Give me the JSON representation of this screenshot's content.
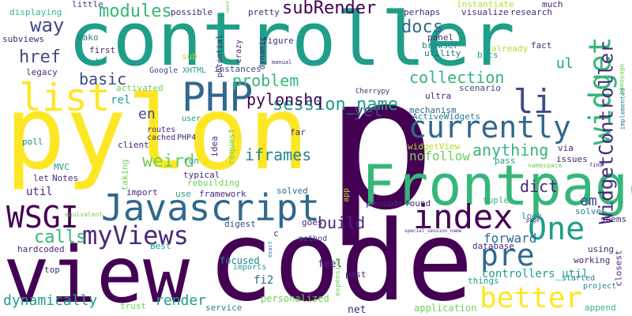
{
  "palette": {
    "purple": "#440154",
    "indigo": "#482878",
    "blue": "#3e4989",
    "steel": "#31688e",
    "teal": "#26828e",
    "sea": "#1f9e89",
    "green": "#35b779",
    "lime": "#6ece58",
    "light": "#b5de2b",
    "yellow": "#fde725"
  },
  "words": [
    {
      "text": "p",
      "color": "purple"
    },
    {
      "text": "controller",
      "color": "sea"
    },
    {
      "text": "pylon",
      "color": "yellow"
    },
    {
      "text": "code",
      "color": "purple"
    },
    {
      "text": "view",
      "color": "purple"
    },
    {
      "text": "Frontpage",
      "color": "green"
    },
    {
      "text": "Javascript",
      "color": "steel"
    },
    {
      "text": "index",
      "color": "purple"
    },
    {
      "text": "currently",
      "color": "steel"
    },
    {
      "text": "PHP",
      "color": "steel"
    },
    {
      "text": "list",
      "color": "yellow"
    },
    {
      "text": "widget",
      "color": "green"
    },
    {
      "text": "li",
      "color": "blue"
    },
    {
      "text": "WidgetController",
      "color": "indigo"
    },
    {
      "text": "myViews",
      "color": "indigo"
    },
    {
      "text": "One",
      "color": "sea"
    },
    {
      "text": "better",
      "color": "yellow"
    },
    {
      "text": "WSGI",
      "color": "purple"
    },
    {
      "text": "pre",
      "color": "steel"
    },
    {
      "text": "modules",
      "color": "green"
    },
    {
      "text": "subRender",
      "color": "purple"
    },
    {
      "text": "docs",
      "color": "steel"
    },
    {
      "text": "way",
      "color": "blue"
    },
    {
      "text": "href",
      "color": "blue"
    },
    {
      "text": "basic",
      "color": "blue"
    },
    {
      "text": "collection",
      "color": "green"
    },
    {
      "text": "session_name",
      "color": "sea"
    },
    {
      "text": "pylonshq",
      "color": "purple"
    },
    {
      "text": "problem",
      "color": "green"
    },
    {
      "text": "yet",
      "color": "blue"
    },
    {
      "text": "anything",
      "color": "green"
    },
    {
      "text": "iframes",
      "color": "teal"
    },
    {
      "text": "weird",
      "color": "lime"
    },
    {
      "text": "build",
      "color": "indigo"
    },
    {
      "text": "dict",
      "color": "indigo"
    },
    {
      "text": "calls",
      "color": "green"
    },
    {
      "text": "em",
      "color": "blue"
    },
    {
      "text": "en",
      "color": "blue"
    },
    {
      "text": "nofollow",
      "color": "lime"
    },
    {
      "text": "forward",
      "color": "steel"
    },
    {
      "text": "render",
      "color": "sea"
    },
    {
      "text": "dynamically",
      "color": "sea"
    },
    {
      "text": "controllers_util",
      "color": "sea"
    },
    {
      "text": "ul",
      "color": "sea"
    },
    {
      "text": "fi2",
      "color": "steel"
    },
    {
      "text": "rel",
      "color": "sea"
    },
    {
      "text": "util",
      "color": "indigo"
    },
    {
      "text": "Google",
      "color": "blue"
    },
    {
      "text": "XHTML",
      "color": "sea"
    },
    {
      "text": "instances",
      "color": "blue"
    },
    {
      "text": "routes",
      "color": "indigo"
    },
    {
      "text": "cached",
      "color": "indigo"
    },
    {
      "text": "client",
      "color": "indigo"
    },
    {
      "text": "PHP4",
      "color": "indigo"
    },
    {
      "text": "typical",
      "color": "indigo"
    },
    {
      "text": "framework",
      "color": "indigo"
    },
    {
      "text": "solved",
      "color": "steel"
    },
    {
      "text": "digest",
      "color": "blue"
    },
    {
      "text": "goes",
      "color": "indigo"
    },
    {
      "text": "method",
      "color": "blue"
    },
    {
      "text": "focused",
      "color": "teal"
    },
    {
      "text": "imports",
      "color": "sea"
    },
    {
      "text": "feel",
      "color": "indigo"
    },
    {
      "text": "past",
      "color": "indigo"
    },
    {
      "text": "net",
      "color": "indigo"
    },
    {
      "text": "service",
      "color": "teal"
    },
    {
      "text": "personalized",
      "color": "lime"
    },
    {
      "text": "application",
      "color": "lime"
    },
    {
      "text": "trust",
      "color": "lime"
    },
    {
      "text": "things",
      "color": "sea"
    },
    {
      "text": "started",
      "color": "teal"
    },
    {
      "text": "project",
      "color": "teal"
    },
    {
      "text": "append",
      "color": "green"
    },
    {
      "text": "working",
      "color": "indigo"
    },
    {
      "text": "using",
      "color": "indigo"
    },
    {
      "text": "closest",
      "color": "indigo"
    },
    {
      "text": "database",
      "color": "indigo"
    },
    {
      "text": "found",
      "color": "indigo"
    },
    {
      "text": "tuples",
      "color": "green"
    },
    {
      "text": "solve",
      "color": "teal"
    },
    {
      "text": "look",
      "color": "teal"
    },
    {
      "text": "seems",
      "color": "indigo"
    },
    {
      "text": "peusudo",
      "color": "indigo"
    },
    {
      "text": "app",
      "color": "light"
    },
    {
      "text": "pass",
      "color": "sea"
    },
    {
      "text": "issues",
      "color": "indigo"
    },
    {
      "text": "via",
      "color": "indigo"
    },
    {
      "text": "mechanism",
      "color": "steel"
    },
    {
      "text": "ultra",
      "color": "indigo"
    },
    {
      "text": "scenario",
      "color": "blue"
    },
    {
      "text": "ActiveWidgets",
      "color": "teal"
    },
    {
      "text": "widgetView",
      "color": "light"
    },
    {
      "text": "Cherrypy",
      "color": "indigo"
    },
    {
      "text": "utility",
      "color": "steel"
    },
    {
      "text": "bits",
      "color": "sea"
    },
    {
      "text": "already",
      "color": "light"
    },
    {
      "text": "panel",
      "color": "indigo"
    },
    {
      "text": "browser",
      "color": "teal"
    },
    {
      "text": "fact",
      "color": "indigo"
    },
    {
      "text": "figure",
      "color": "indigo"
    },
    {
      "text": "pretty",
      "color": "indigo"
    },
    {
      "text": "dynamic",
      "color": "indigo"
    },
    {
      "text": "crazy",
      "color": "indigo"
    },
    {
      "text": "potential",
      "color": "indigo"
    },
    {
      "text": "sub",
      "color": "light"
    },
    {
      "text": "possible",
      "color": "indigo"
    },
    {
      "text": "perhaps",
      "color": "indigo"
    },
    {
      "text": "instantiate",
      "color": "light"
    },
    {
      "text": "much",
      "color": "indigo"
    },
    {
      "text": "visualize",
      "color": "indigo"
    },
    {
      "text": "research",
      "color": "indigo"
    },
    {
      "text": "little",
      "color": "blue"
    },
    {
      "text": "displaying",
      "color": "green"
    },
    {
      "text": "subviews",
      "color": "indigo"
    },
    {
      "text": "mako",
      "color": "teal"
    },
    {
      "text": "first",
      "color": "indigo"
    },
    {
      "text": "legacy",
      "color": "indigo"
    },
    {
      "text": "activated",
      "color": "lime"
    },
    {
      "text": "user",
      "color": "sea"
    },
    {
      "text": "poll",
      "color": "teal"
    },
    {
      "text": "MVC",
      "color": "sea"
    },
    {
      "text": "Notes",
      "color": "indigo"
    },
    {
      "text": "let",
      "color": "indigo"
    },
    {
      "text": "import",
      "color": "indigo"
    },
    {
      "text": "use",
      "color": "sea"
    },
    {
      "text": "hardcoded",
      "color": "indigo"
    },
    {
      "text": "Best",
      "color": "sea"
    },
    {
      "text": "c",
      "color": "indigo"
    },
    {
      "text": "top",
      "color": "indigo"
    },
    {
      "text": "request",
      "color": "lime"
    },
    {
      "text": "taking",
      "color": "lime"
    },
    {
      "text": "rebuilding",
      "color": "lime"
    },
    {
      "text": "idea",
      "color": "indigo"
    },
    {
      "text": "far",
      "color": "indigo"
    },
    {
      "text": "run",
      "color": "sea"
    },
    {
      "text": "equivalent",
      "color": "lime"
    },
    {
      "text": "homepage",
      "color": "lime"
    },
    {
      "text": "implemented",
      "color": "teal"
    },
    {
      "text": "manual",
      "color": "indigo"
    },
    {
      "text": "expensive",
      "color": "lime"
    },
    {
      "text": "exact",
      "color": "teal"
    },
    {
      "text": "find",
      "color": "indigo"
    },
    {
      "text": "namespace",
      "color": "lime"
    },
    {
      "text": "special_session_name",
      "color": "indigo"
    },
    {
      "text": "page",
      "color": "indigo"
    },
    {
      "text": "need",
      "color": "lime"
    },
    {
      "text": "N",
      "color": "sea"
    }
  ]
}
